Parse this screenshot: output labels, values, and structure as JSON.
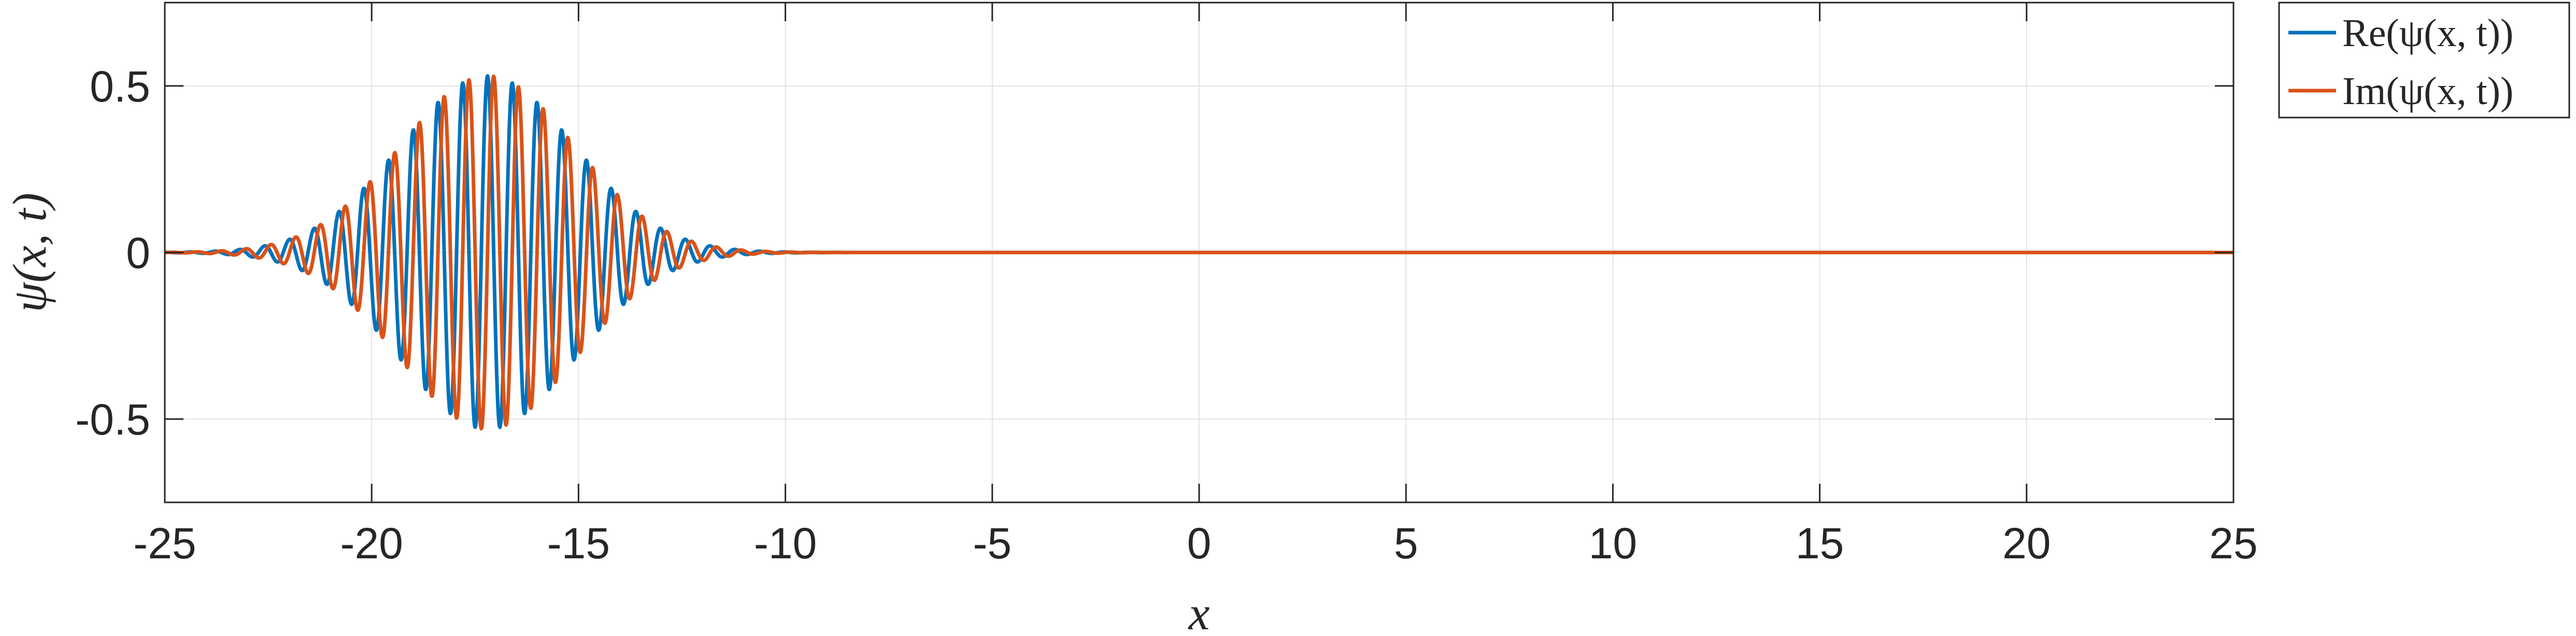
{
  "chart_data": {
    "type": "line",
    "xlabel": "x",
    "ylabel": "ψ(x, t)",
    "xlim": [
      -25,
      25
    ],
    "ylim": [
      -0.75,
      0.75
    ],
    "xticks": [
      -25,
      -20,
      -15,
      -10,
      -5,
      0,
      5,
      10,
      15,
      20,
      25
    ],
    "xtick_labels": [
      "-25",
      "-20",
      "-15",
      "-10",
      "-5",
      "0",
      "5",
      "10",
      "15",
      "20",
      "25"
    ],
    "yticks": [
      -0.5,
      0,
      0.5
    ],
    "ytick_labels": [
      "-0.5",
      "0",
      "0.5"
    ],
    "grid": true,
    "legend_placement": "outside top-right",
    "wave_packet": {
      "center": -17.2,
      "width": 2.1,
      "amplitude": 0.53,
      "wavenumber": 10.5
    },
    "series": [
      {
        "name": "Re(ψ(x, t))",
        "component": "real",
        "color": "#0072BD"
      },
      {
        "name": "Im(ψ(x, t))",
        "component": "imag",
        "color": "#D95319"
      }
    ]
  }
}
